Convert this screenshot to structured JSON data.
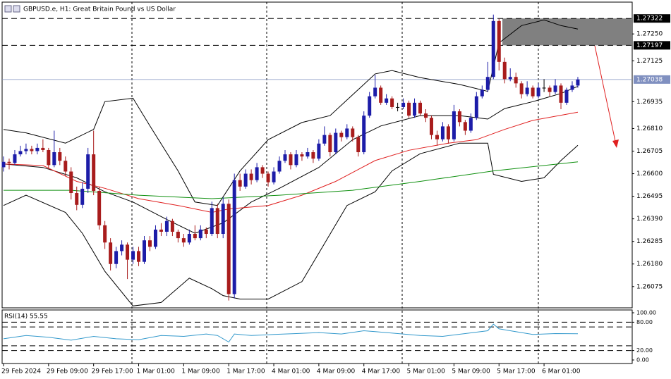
{
  "chart_data": {
    "type": "candlestick",
    "title": "GBPUSD.e, H1:  Great Britain Pound vs US Dollar",
    "categories": [
      "29 Feb 2024",
      null,
      null,
      null,
      null,
      null,
      null,
      null,
      "29 Feb 09:00",
      null,
      null,
      null,
      null,
      null,
      null,
      null,
      "29 Feb 17:00",
      null,
      null,
      null,
      null,
      null,
      null,
      null,
      "1 Mar 01:00",
      null,
      null,
      null,
      null,
      null,
      null,
      null,
      "1 Mar 09:00",
      null,
      null,
      null,
      null,
      null,
      null,
      null,
      "1 Mar 17:00",
      null,
      null,
      null,
      null,
      null,
      null,
      null,
      "4 Mar 01:00",
      null,
      null,
      null,
      null,
      null,
      null,
      null,
      "4 Mar 09:00",
      null,
      null,
      null,
      null,
      null,
      null,
      null,
      "4 Mar 17:00",
      null,
      null,
      null,
      null,
      null,
      null,
      null,
      "5 Mar 01:00",
      null,
      null,
      null,
      null,
      null,
      null,
      null,
      "5 Mar 09:00",
      null,
      null,
      null,
      null,
      null,
      null,
      null,
      "5 Mar 17:00",
      null,
      null,
      null,
      null,
      null,
      null,
      null,
      "6 Mar 01:00",
      null,
      null,
      null,
      null,
      null,
      null
    ],
    "candles": [
      [
        1.2663,
        1.2668,
        1.2661,
        1.26655
      ],
      [
        1.26655,
        1.2667,
        1.2662,
        1.2665
      ],
      [
        1.2665,
        1.2671,
        1.2664,
        1.2669
      ],
      [
        1.2669,
        1.2673,
        1.2668,
        1.26705
      ],
      [
        1.26705,
        1.2674,
        1.2669,
        1.26715
      ],
      [
        1.26715,
        1.2673,
        1.2669,
        1.26705
      ],
      [
        1.26705,
        1.2674,
        1.2669,
        1.2672
      ],
      [
        1.2672,
        1.2676,
        1.267,
        1.2671
      ],
      [
        1.2671,
        1.2672,
        1.2662,
        1.2664
      ],
      [
        1.2664,
        1.268,
        1.2663,
        1.267
      ],
      [
        1.267,
        1.2672,
        1.2664,
        1.2666
      ],
      [
        1.2666,
        1.2668,
        1.2659,
        1.2661
      ],
      [
        1.2661,
        1.2663,
        1.2648,
        1.2651
      ],
      [
        1.2651,
        1.2654,
        1.2643,
        1.26455
      ],
      [
        1.26455,
        1.2656,
        1.2644,
        1.2653
      ],
      [
        1.2653,
        1.2672,
        1.2651,
        1.2669
      ],
      [
        1.2669,
        1.268,
        1.265,
        1.2652
      ],
      [
        1.2652,
        1.2654,
        1.2634,
        1.2636
      ],
      [
        1.2636,
        1.2638,
        1.2625,
        1.2628
      ],
      [
        1.2628,
        1.263,
        1.2615,
        1.2618
      ],
      [
        1.2618,
        1.2626,
        1.2616,
        1.2624
      ],
      [
        1.2624,
        1.2629,
        1.2622,
        1.2627
      ],
      [
        1.2627,
        1.2628,
        1.2611,
        1.262
      ],
      [
        1.262,
        1.2626,
        1.2618,
        1.2624
      ],
      [
        1.2624,
        1.2626,
        1.2617,
        1.2619
      ],
      [
        1.2619,
        1.2631,
        1.2618,
        1.2629
      ],
      [
        1.2629,
        1.2631,
        1.2624,
        1.2626
      ],
      [
        1.2626,
        1.2636,
        1.2625,
        1.2634
      ],
      [
        1.2634,
        1.2637,
        1.2631,
        1.2633
      ],
      [
        1.2633,
        1.264,
        1.2631,
        1.2638
      ],
      [
        1.2638,
        1.2639,
        1.2631,
        1.2633
      ],
      [
        1.2633,
        1.2634,
        1.2628,
        1.263
      ],
      [
        1.263,
        1.2632,
        1.2626,
        1.2628
      ],
      [
        1.2628,
        1.2634,
        1.2627,
        1.2632
      ],
      [
        1.2632,
        1.2636,
        1.2629,
        1.263
      ],
      [
        1.263,
        1.2636,
        1.2629,
        1.2634
      ],
      [
        1.2634,
        1.2635,
        1.263,
        1.2632
      ],
      [
        1.2632,
        1.2647,
        1.2631,
        1.2644
      ],
      [
        1.2644,
        1.2646,
        1.263,
        1.2632
      ],
      [
        1.2632,
        1.2649,
        1.263,
        1.2646
      ],
      [
        1.2646,
        1.2648,
        1.2601,
        1.2604
      ],
      [
        1.2604,
        1.266,
        1.2602,
        1.2657
      ],
      [
        1.2657,
        1.266,
        1.2652,
        1.2654
      ],
      [
        1.2654,
        1.2662,
        1.2653,
        1.266
      ],
      [
        1.266,
        1.2662,
        1.2655,
        1.2657
      ],
      [
        1.2657,
        1.2665,
        1.2656,
        1.2663
      ],
      [
        1.2663,
        1.2664,
        1.2658,
        1.266
      ],
      [
        1.266,
        1.2661,
        1.2654,
        1.2656
      ],
      [
        1.2656,
        1.2663,
        1.2655,
        1.2661
      ],
      [
        1.2661,
        1.2668,
        1.266,
        1.2666
      ],
      [
        1.2666,
        1.2671,
        1.2665,
        1.2669
      ],
      [
        1.2669,
        1.267,
        1.2662,
        1.2664
      ],
      [
        1.2664,
        1.2671,
        1.2663,
        1.2669
      ],
      [
        1.2669,
        1.267,
        1.2666,
        1.2668
      ],
      [
        1.2668,
        1.2672,
        1.2667,
        1.267
      ],
      [
        1.267,
        1.2671,
        1.2665,
        1.2667
      ],
      [
        1.2667,
        1.2676,
        1.2666,
        1.2674
      ],
      [
        1.2674,
        1.2682,
        1.2673,
        1.2678
      ],
      [
        1.2678,
        1.2679,
        1.2668,
        1.267
      ],
      [
        1.267,
        1.2681,
        1.2669,
        1.2679
      ],
      [
        1.2679,
        1.268,
        1.2675,
        1.2677
      ],
      [
        1.2677,
        1.2683,
        1.2676,
        1.2681
      ],
      [
        1.2681,
        1.2682,
        1.2675,
        1.2677
      ],
      [
        1.2677,
        1.2678,
        1.2668,
        1.267
      ],
      [
        1.267,
        1.2689,
        1.2669,
        1.2687
      ],
      [
        1.2687,
        1.2698,
        1.2686,
        1.2696
      ],
      [
        1.2696,
        1.2706,
        1.2695,
        1.27
      ],
      [
        1.27,
        1.2701,
        1.2692,
        1.2693
      ],
      [
        1.2693,
        1.2697,
        1.2692,
        1.2695
      ],
      [
        1.2695,
        1.2696,
        1.269,
        1.2691
      ],
      [
        1.2691,
        1.2693,
        1.2689,
        1.2691
      ],
      [
        1.2691,
        1.2695,
        1.269,
        1.2693
      ],
      [
        1.2693,
        1.2694,
        1.2686,
        1.2687
      ],
      [
        1.2687,
        1.2695,
        1.2686,
        1.2693
      ],
      [
        1.2693,
        1.2694,
        1.2687,
        1.2688
      ],
      [
        1.2688,
        1.269,
        1.2684,
        1.2686
      ],
      [
        1.2686,
        1.2687,
        1.2676,
        1.2678
      ],
      [
        1.2678,
        1.268,
        1.2673,
        1.2676
      ],
      [
        1.2676,
        1.2684,
        1.2675,
        1.2682
      ],
      [
        1.2682,
        1.2683,
        1.2674,
        1.2676
      ],
      [
        1.2676,
        1.2692,
        1.2675,
        1.2689
      ],
      [
        1.2689,
        1.269,
        1.2682,
        1.2684
      ],
      [
        1.2684,
        1.2685,
        1.2678,
        1.268
      ],
      [
        1.268,
        1.2688,
        1.2679,
        1.2686
      ],
      [
        1.2686,
        1.2698,
        1.2685,
        1.2696
      ],
      [
        1.2696,
        1.2701,
        1.2695,
        1.2699
      ],
      [
        1.2699,
        1.2712,
        1.2698,
        1.2705
      ],
      [
        1.2705,
        1.2734,
        1.2704,
        1.2731
      ],
      [
        1.2731,
        1.2732,
        1.2708,
        1.2712
      ],
      [
        1.2712,
        1.2714,
        1.2702,
        1.2704
      ],
      [
        1.2704,
        1.2709,
        1.2703,
        1.2705
      ],
      [
        1.2705,
        1.2707,
        1.27,
        1.2702
      ],
      [
        1.2702,
        1.2703,
        1.2695,
        1.2697
      ],
      [
        1.2697,
        1.2703,
        1.2696,
        1.27
      ],
      [
        1.27,
        1.2701,
        1.2695,
        1.2696
      ],
      [
        1.2696,
        1.2702,
        1.2695,
        1.27
      ],
      [
        1.27,
        1.2704,
        1.2698,
        1.27
      ],
      [
        1.27,
        1.2701,
        1.2696,
        1.2698
      ],
      [
        1.2698,
        1.2704,
        1.2697,
        1.2701
      ],
      [
        1.2701,
        1.2702,
        1.269,
        1.2693
      ],
      [
        1.2693,
        1.27,
        1.2692,
        1.2699
      ],
      [
        1.2699,
        1.2703,
        1.2698,
        1.2701
      ],
      [
        1.2701,
        1.2705,
        1.27,
        1.27038
      ]
    ],
    "bull_color": "#1c1ca8",
    "bear_color": "#a81c1c",
    "ylim": [
      1.25976,
      1.27398
    ],
    "yticks": [
      {
        "value": 1.2725,
        "label": "1.27250"
      },
      1.27125,
      1.26935,
      {
        "value": 1.2681,
        "label": "1.26810"
      },
      1.26705,
      {
        "value": 1.266,
        "label": "1.26600"
      },
      1.26495,
      {
        "value": 1.2639,
        "label": "1.26390"
      },
      1.26285,
      {
        "value": 1.2618,
        "label": "1.26180"
      },
      1.26075
    ],
    "levels": [
      1.27322,
      1.27197
    ],
    "current_price": 1.27038,
    "lines": [
      {
        "color": "#000000",
        "x": [
          0,
          4,
          11,
          16,
          18,
          23,
          26,
          31,
          34,
          38,
          42,
          47,
          53,
          58,
          62,
          66,
          69,
          74,
          81,
          86,
          88,
          92,
          96,
          99,
          102
        ],
        "values": [
          1.26806,
          1.2679,
          1.26742,
          1.26806,
          1.26935,
          1.26951,
          1.26822,
          1.26613,
          1.26468,
          1.26452,
          1.26613,
          1.26758,
          1.26838,
          1.2687,
          1.26967,
          1.27064,
          1.2708,
          1.27047,
          1.27015,
          1.26983,
          1.27208,
          1.27289,
          1.27315,
          1.27289,
          1.27273
        ]
      },
      {
        "color": "#000000",
        "x": [
          0,
          7,
          13,
          18,
          23,
          29,
          34,
          39,
          44,
          49,
          56,
          62,
          67,
          74,
          81,
          86,
          89,
          94,
          99,
          102
        ],
        "values": [
          1.26645,
          1.26629,
          1.26581,
          1.26516,
          1.26468,
          1.26387,
          1.26323,
          1.26371,
          1.26468,
          1.26532,
          1.26629,
          1.26758,
          1.26822,
          1.2687,
          1.2687,
          1.26854,
          1.26903,
          1.26935,
          1.26973,
          1.27006
        ]
      },
      {
        "color": "#000000",
        "x": [
          0,
          4,
          11,
          14,
          18,
          23,
          28,
          33,
          37,
          39,
          42,
          47,
          53,
          57,
          61,
          66,
          69,
          74,
          81,
          86,
          87,
          92,
          96,
          99,
          102
        ],
        "values": [
          1.26452,
          1.265,
          1.2642,
          1.26323,
          1.26146,
          1.25985,
          1.26001,
          1.26114,
          1.26065,
          1.26033,
          1.26017,
          1.26017,
          1.26098,
          1.26275,
          1.26452,
          1.26516,
          1.26613,
          1.26693,
          1.26742,
          1.26742,
          1.26597,
          1.26564,
          1.26581,
          1.26661,
          1.26732
        ]
      },
      {
        "color": "#e02020",
        "x": [
          0,
          7,
          13,
          18,
          24,
          31,
          37,
          40,
          47,
          53,
          59,
          66,
          72,
          79,
          84,
          89,
          94,
          102
        ],
        "values": [
          1.26645,
          1.26638,
          1.26564,
          1.26532,
          1.26484,
          1.26452,
          1.2642,
          1.26436,
          1.26452,
          1.265,
          1.26564,
          1.26661,
          1.26709,
          1.26742,
          1.26758,
          1.26806,
          1.26848,
          1.26886
        ]
      },
      {
        "color": "#109010",
        "x": [
          0,
          12,
          24,
          37,
          49,
          62,
          74,
          87,
          102
        ],
        "values": [
          1.26523,
          1.26523,
          1.265,
          1.26484,
          1.265,
          1.26523,
          1.26564,
          1.26613,
          1.26655
        ]
      }
    ],
    "rsi": {
      "label": "RSI(14) 55.55",
      "color": "#3399cc",
      "ylim": [
        0,
        100
      ],
      "yticks": [
        {
          "value": 100,
          "label": "100.00"
        },
        {
          "value": 80,
          "label": "80.00"
        },
        {
          "value": 20,
          "label": "20.00"
        },
        {
          "value": 0,
          "label": "0.00"
        }
      ],
      "levels": [
        80,
        70,
        30,
        20
      ],
      "x": [
        0,
        4,
        8,
        12,
        16,
        20,
        24,
        28,
        32,
        36,
        38,
        40,
        41,
        44,
        48,
        52,
        56,
        60,
        64,
        66,
        70,
        74,
        78,
        82,
        86,
        87,
        88,
        90,
        94,
        98,
        102
      ],
      "values": [
        45,
        52,
        48,
        42,
        50,
        45,
        43,
        52,
        50,
        55,
        52,
        38,
        55,
        52,
        54,
        56,
        58,
        55,
        62,
        60,
        56,
        52,
        50,
        56,
        62,
        76,
        66,
        62,
        54,
        56,
        55.55
      ]
    }
  }
}
